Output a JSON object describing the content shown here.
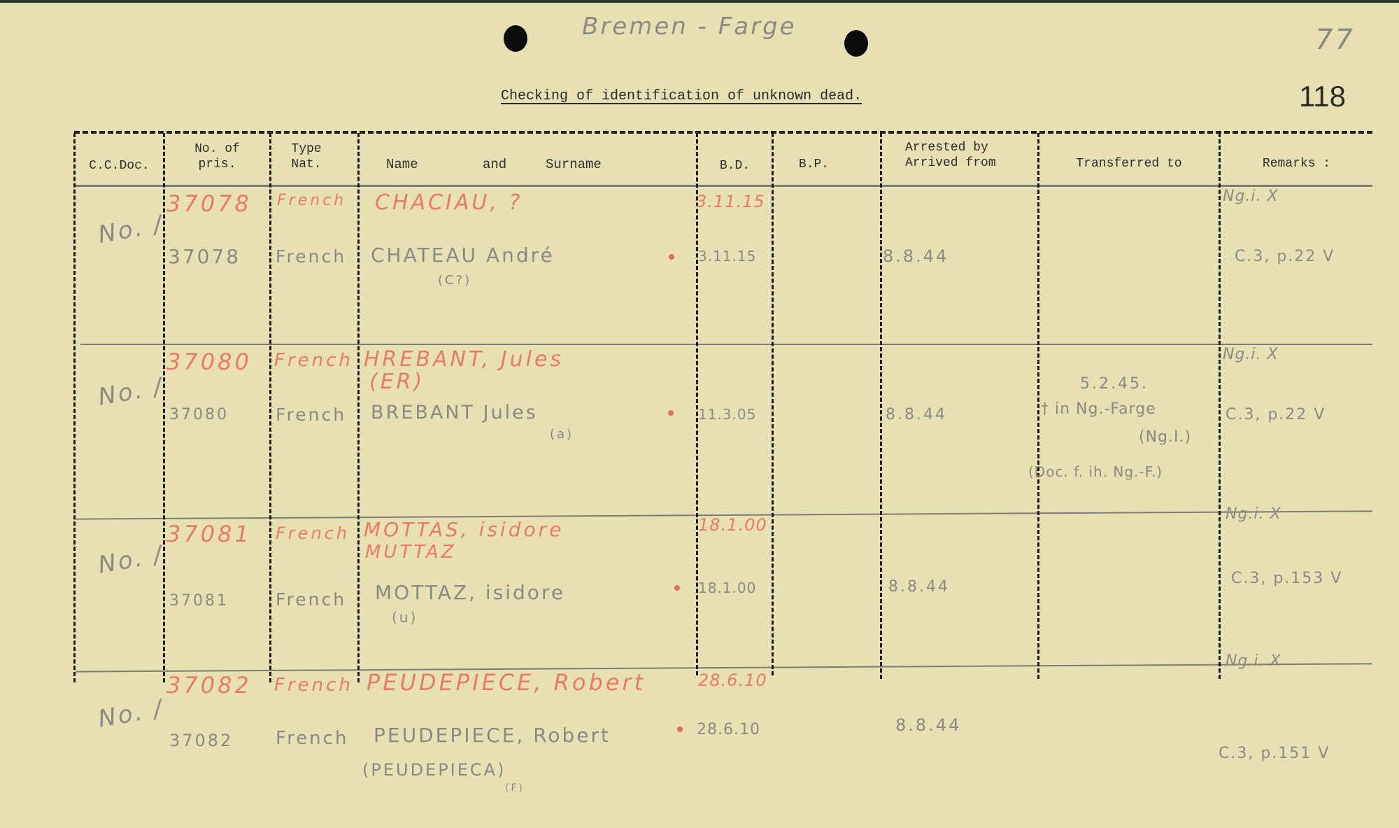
{
  "header": {
    "location_note": "Bremen - Farge",
    "page_number_handwritten": "77",
    "title": "Checking of identification of unknown dead.",
    "page_number_stamped": "118"
  },
  "table": {
    "columns": [
      "C.C.Doc.",
      "No. of pris.",
      "Type Nat.",
      "Name and Surname",
      "B.D.",
      "B.P.",
      "Arrested by Arrived from",
      "Transferred to",
      "Remarks :"
    ],
    "column_parts": {
      "no_of": "No. of",
      "pris": "pris.",
      "type": "Type",
      "nat": "Nat.",
      "name": "Name",
      "and": "and",
      "surname": "Surname",
      "arrested": "Arrested  by",
      "arrived": "Arrived   from"
    },
    "rows": [
      {
        "doc": "No. /",
        "red": {
          "number": "37078",
          "nat": "French",
          "name": "CHACIAU, ?",
          "bd": "3.11.15"
        },
        "number": "37078",
        "nat": "French",
        "name": "CHATEAU André",
        "name_note": "(C?)",
        "bd": "3.11.15",
        "arrived": "8.8.44",
        "transferred": [],
        "remarks_top": "Ng.i. X",
        "remarks": "C.3, p.22 V"
      },
      {
        "doc": "No. /",
        "red": {
          "number": "37080",
          "nat": "French",
          "name": "HREBANT, Jules",
          "name2": "(ER)",
          "bd": ""
        },
        "number": "37080",
        "nat": "French",
        "name": "BREBANT Jules",
        "name_note": "(a)",
        "bd": "11.3.05",
        "arrived": "8.8.44",
        "transferred": [
          "5.2.45.",
          "† in Ng.-Farge",
          "(Ng.I.)",
          "(Doc. f. ih. Ng.-F.)"
        ],
        "remarks_top": "Ng.i. X",
        "remarks": "C.3, p.22 V"
      },
      {
        "doc": "No. /",
        "red": {
          "number": "37081",
          "nat": "French",
          "name": "MOTTAS, isidore",
          "name2": "MUTTAZ",
          "bd": "18.1.00"
        },
        "number": "37081",
        "nat": "French",
        "name": "MOTTAZ, isidore",
        "name_note": "(u)",
        "bd": "18.1.00",
        "arrived": "8.8.44",
        "transferred": [],
        "remarks_top": "Ng.i. X",
        "remarks": "C.3, p.153 V"
      },
      {
        "doc": "No. /",
        "red": {
          "number": "37082",
          "nat": "French",
          "name": "PEUDEPIECE, Robert",
          "bd": "28.6.10"
        },
        "number": "37082",
        "nat": "French",
        "name": "PEUDEPIECE, Robert",
        "name_note": "(PEUDEPIECA)",
        "name_note2": "(F)",
        "bd": "28.6.10",
        "arrived": "8.8.44",
        "transferred": [],
        "remarks_top": "Ng.i. X",
        "remarks": "C.3, p.151 V"
      }
    ]
  },
  "colors": {
    "paper": "#e7e0b3",
    "red_pencil": "#ea7a64",
    "grey_pencil": "#8a8a82",
    "ink": "#1c1c1c"
  }
}
